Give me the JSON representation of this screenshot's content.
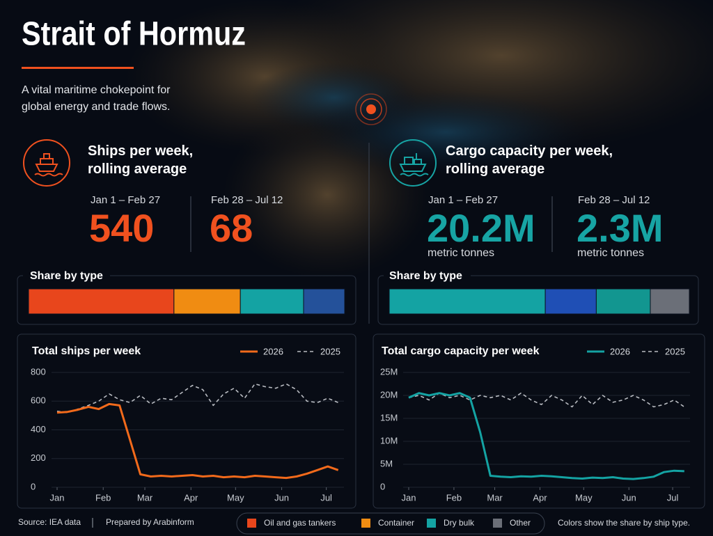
{
  "header": {
    "title": "Strait of Hormuz",
    "subtitle": "A vital maritime chokepoint for global energy and trade flows."
  },
  "panels": [
    {
      "title": "Ships per week, rolling average",
      "color": "#f0511f",
      "periods": [
        {
          "label": "Jan 1 – Feb 27",
          "value": "540"
        },
        {
          "label": "Feb 28 – Jul 12",
          "value": "68"
        }
      ]
    },
    {
      "title": "Cargo capacity per week, rolling average",
      "color": "#17a4a4",
      "periods": [
        {
          "label": "Jan 1 – Feb 27",
          "value": "20.2M",
          "unit": "metric tonnes"
        },
        {
          "label": "Feb 28 – Jul 12",
          "value": "2.3M",
          "unit": "metric tonnes"
        }
      ]
    }
  ],
  "chart_data": [
    {
      "type": "share",
      "title": "Share by type",
      "values": [
        46,
        21,
        20,
        13
      ],
      "colors": [
        "#e8461c",
        "#f08c12",
        "#14a3a3",
        "#24519a"
      ]
    },
    {
      "type": "share",
      "title": "Share by type",
      "values": [
        52,
        17,
        18,
        13
      ],
      "colors": [
        "#14a3a3",
        "#1f4fb5",
        "#129690",
        "#6b6f78"
      ]
    },
    {
      "type": "line",
      "title": "Total ships per week",
      "x": [
        0,
        7,
        14,
        21,
        28,
        35,
        42,
        49,
        56,
        63,
        70,
        77,
        84,
        91,
        98,
        105,
        112,
        119,
        126,
        133,
        140,
        147,
        154,
        161,
        168,
        175,
        182,
        189
      ],
      "xlim": [
        0,
        191
      ],
      "xticks": [
        {
          "value": 0,
          "label": "Jan"
        },
        {
          "value": 31,
          "label": "Feb"
        },
        {
          "value": 59,
          "label": "Mar"
        },
        {
          "value": 90,
          "label": "Apr"
        },
        {
          "value": 120,
          "label": "May"
        },
        {
          "value": 151,
          "label": "Jun"
        },
        {
          "value": 181,
          "label": "Jul"
        }
      ],
      "ylim": [
        0,
        800
      ],
      "yticks": [
        0,
        200,
        400,
        600,
        800
      ],
      "series": [
        {
          "name": "2026",
          "color": "#f26a1b",
          "dashed": false,
          "values": [
            520,
            525,
            540,
            560,
            545,
            580,
            570,
            330,
            90,
            75,
            80,
            75,
            80,
            85,
            75,
            80,
            70,
            75,
            70,
            80,
            75,
            70,
            65,
            75,
            95,
            120,
            145,
            120
          ]
        },
        {
          "name": "2025",
          "color": "#b9bcc2",
          "dashed": true,
          "values": [
            530,
            520,
            545,
            570,
            600,
            650,
            610,
            590,
            640,
            580,
            620,
            610,
            660,
            710,
            680,
            570,
            650,
            690,
            620,
            720,
            700,
            690,
            720,
            680,
            600,
            590,
            620,
            590
          ]
        }
      ]
    },
    {
      "type": "line",
      "title": "Total cargo capacity per week",
      "x": [
        0,
        7,
        14,
        21,
        28,
        35,
        42,
        49,
        56,
        63,
        70,
        77,
        84,
        91,
        98,
        105,
        112,
        119,
        126,
        133,
        140,
        147,
        154,
        161,
        168,
        175,
        182,
        189
      ],
      "xlim": [
        0,
        191
      ],
      "xticks": [
        {
          "value": 0,
          "label": "Jan"
        },
        {
          "value": 31,
          "label": "Feb"
        },
        {
          "value": 59,
          "label": "Mar"
        },
        {
          "value": 90,
          "label": "Apr"
        },
        {
          "value": 120,
          "label": "May"
        },
        {
          "value": 151,
          "label": "Jun"
        },
        {
          "value": 181,
          "label": "Jul"
        }
      ],
      "ylim": [
        0,
        25000000
      ],
      "yticks": [
        0,
        {
          "value": 5000000,
          "label": "5M"
        },
        {
          "value": 10000000,
          "label": "10M"
        },
        {
          "value": 15000000,
          "label": "15M"
        },
        {
          "value": 20000000,
          "label": "20M"
        },
        {
          "value": 25000000,
          "label": "25M"
        }
      ],
      "series": [
        {
          "name": "2026",
          "color": "#14a3a3",
          "dashed": false,
          "values": [
            19500000,
            20500000,
            20000000,
            20500000,
            20000000,
            20500000,
            19500000,
            12000000,
            2500000,
            2300000,
            2200000,
            2400000,
            2300000,
            2500000,
            2400000,
            2200000,
            2000000,
            1900000,
            2100000,
            2000000,
            2200000,
            1900000,
            1800000,
            2000000,
            2300000,
            3300000,
            3600000,
            3500000
          ]
        },
        {
          "name": "2025",
          "color": "#b9bcc2",
          "dashed": true,
          "values": [
            19500000,
            20000000,
            19000000,
            20500000,
            19500000,
            20000000,
            19000000,
            20000000,
            19500000,
            20000000,
            19000000,
            20500000,
            19000000,
            18000000,
            20000000,
            19000000,
            17500000,
            20000000,
            18000000,
            20000000,
            18500000,
            19000000,
            20000000,
            19000000,
            17500000,
            18000000,
            19000000,
            17500000
          ]
        }
      ]
    }
  ],
  "footer": {
    "source": "Source: IEA data",
    "credit": "Prepared by Arabinform",
    "legend": [
      {
        "name": "Oil and gas tankers",
        "color": "#e8461c"
      },
      {
        "name": "Container",
        "color": "#f08c12"
      },
      {
        "name": "Dry bulk",
        "color": "#14a3a3"
      },
      {
        "name": "Other",
        "color": "#6b6f78"
      }
    ],
    "note": "Colors show the share by ship type."
  }
}
